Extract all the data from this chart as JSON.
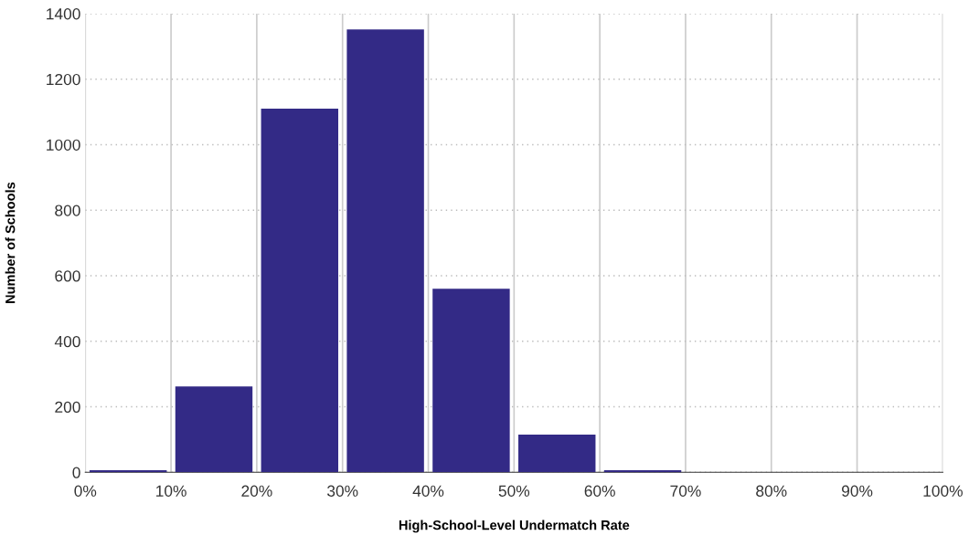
{
  "chart_data": {
    "type": "histogram",
    "xlabel": "High-School-Level Undermatch Rate",
    "ylabel": "Number of Schools",
    "color": "#332a86",
    "bins": [
      0,
      10,
      20,
      30,
      40,
      50,
      60,
      70,
      80,
      90,
      100
    ],
    "values": [
      6,
      262,
      1110,
      1352,
      560,
      115,
      6,
      null,
      0,
      0
    ],
    "xlim": [
      0,
      100
    ],
    "ylim": [
      0,
      1400
    ],
    "xticks": [
      {
        "value": 0,
        "label": "0%"
      },
      {
        "value": 10,
        "label": "10%"
      },
      {
        "value": 20,
        "label": "20%"
      },
      {
        "value": 30,
        "label": "30%"
      },
      {
        "value": 40,
        "label": "40%"
      },
      {
        "value": 50,
        "label": "50%"
      },
      {
        "value": 60,
        "label": "60%"
      },
      {
        "value": 70,
        "label": "70%"
      },
      {
        "value": 80,
        "label": "80%"
      },
      {
        "value": 90,
        "label": "90%"
      },
      {
        "value": 100,
        "label": "100%"
      }
    ],
    "yticks": [
      0,
      200,
      400,
      600,
      800,
      1000,
      1200,
      1400
    ],
    "grid": true
  }
}
